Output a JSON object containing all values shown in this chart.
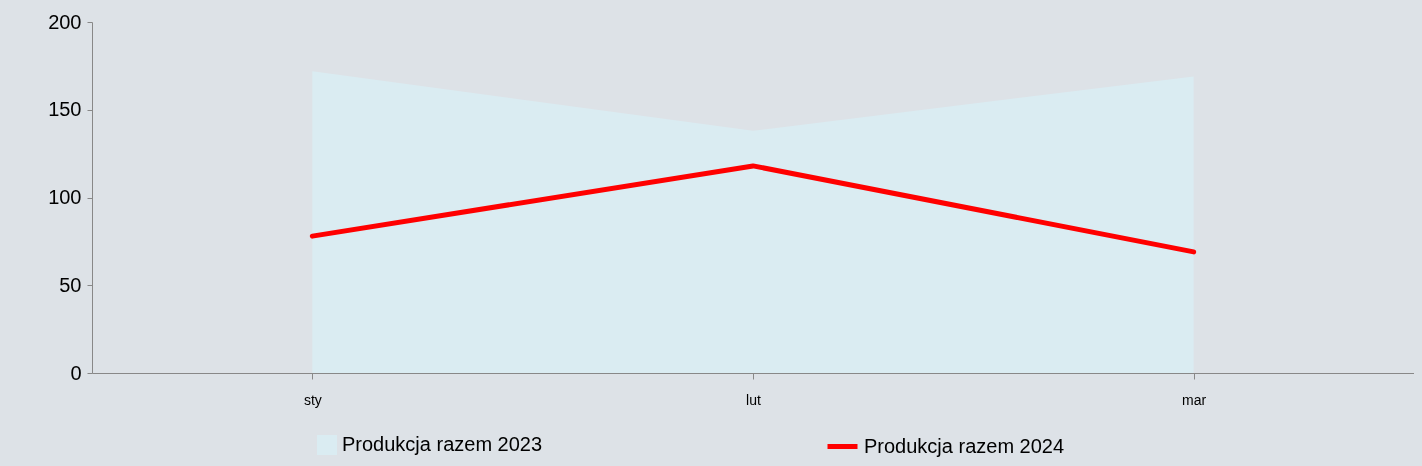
{
  "chart_data": {
    "type": "line",
    "categories": [
      "sty",
      "lut",
      "mar"
    ],
    "series": [
      {
        "name": "Produkcja razem 2023",
        "type": "area",
        "color": "#daecf2",
        "values": [
          172,
          138,
          169
        ]
      },
      {
        "name": "Produkcja razem 2024",
        "color": "#ff0000",
        "values": [
          78,
          118,
          69
        ]
      }
    ],
    "ylim": [
      0,
      200
    ],
    "yticks": [
      0,
      50,
      100,
      150,
      200
    ],
    "grid": false,
    "legend": "bottom"
  }
}
